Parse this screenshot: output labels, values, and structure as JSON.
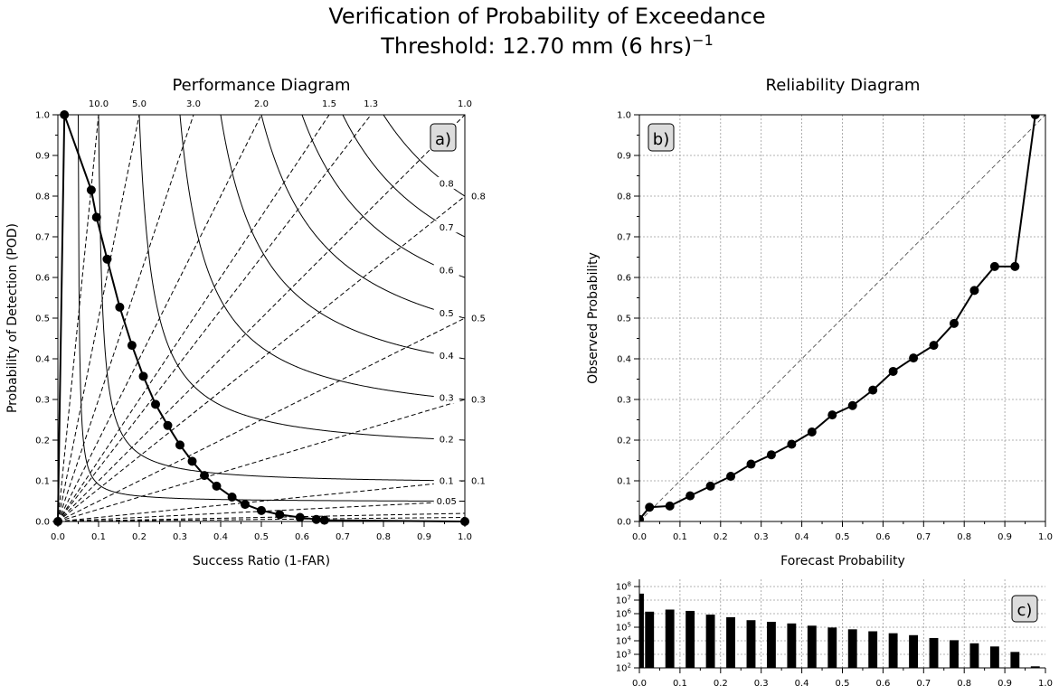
{
  "figure": {
    "title_line1": "Verification of Probability of Exceedance",
    "title_line2_prefix": "Threshold: 12.70 mm (6 hrs)",
    "title_line2_exp": "−1"
  },
  "chart_data": [
    {
      "type": "line",
      "title": "Performance Diagram",
      "xlabel": "Success Ratio (1-FAR)",
      "ylabel": "Probability of Detection (POD)",
      "xlim": [
        0,
        1
      ],
      "ylim": [
        0,
        1
      ],
      "xticks": [
        "0.0",
        "0.1",
        "0.2",
        "0.3",
        "0.4",
        "0.5",
        "0.6",
        "0.7",
        "0.8",
        "0.9",
        "1.0"
      ],
      "yticks": [
        "0.0",
        "0.1",
        "0.2",
        "0.3",
        "0.4",
        "0.5",
        "0.6",
        "0.7",
        "0.8",
        "0.9",
        "1.0"
      ],
      "panel_label": "a)",
      "grid": false,
      "bias_lines": [
        {
          "bias": 10.0,
          "label": "10.0"
        },
        {
          "bias": 5.0,
          "label": "5.0"
        },
        {
          "bias": 3.0,
          "label": "3.0"
        },
        {
          "bias": 2.0,
          "label": "2.0"
        },
        {
          "bias": 1.5,
          "label": "1.5"
        },
        {
          "bias": 1.3,
          "label": "1.3"
        },
        {
          "bias": 1.0,
          "label": "1.0"
        },
        {
          "bias": 0.8,
          "label": "0.8"
        },
        {
          "bias": 0.5,
          "label": "0.5"
        },
        {
          "bias": 0.3,
          "label": "0.3"
        },
        {
          "bias": 0.1,
          "label": "0.1"
        },
        {
          "bias": 0.05,
          "label": ""
        },
        {
          "bias": 0.02,
          "label": ""
        },
        {
          "bias": 0.01,
          "label": ""
        }
      ],
      "csi_contours": [
        {
          "csi": 0.8,
          "label": "0.8"
        },
        {
          "csi": 0.7,
          "label": "0.7"
        },
        {
          "csi": 0.6,
          "label": "0.6"
        },
        {
          "csi": 0.5,
          "label": "0.5"
        },
        {
          "csi": 0.4,
          "label": "0.4"
        },
        {
          "csi": 0.3,
          "label": "0.3"
        },
        {
          "csi": 0.2,
          "label": "0.2"
        },
        {
          "csi": 0.1,
          "label": "0.1"
        },
        {
          "csi": 0.05,
          "label": "0.05"
        }
      ],
      "series": [
        {
          "x": [
            0.0,
            0.016,
            0.082,
            0.095,
            0.121,
            0.152,
            0.182,
            0.21,
            0.24,
            0.27,
            0.3,
            0.33,
            0.36,
            0.39,
            0.428,
            0.46,
            0.5,
            0.545,
            0.595,
            0.635,
            0.655,
            1.0
          ],
          "y": [
            0.0,
            1.0,
            0.815,
            0.748,
            0.645,
            0.527,
            0.433,
            0.357,
            0.288,
            0.236,
            0.188,
            0.148,
            0.113,
            0.087,
            0.06,
            0.042,
            0.027,
            0.017,
            0.01,
            0.005,
            0.003,
            0.0
          ]
        }
      ]
    },
    {
      "type": "line",
      "title": "Reliability Diagram",
      "xlabel": "Forecast Probability",
      "ylabel": "Observed Probability",
      "xlim": [
        0,
        1
      ],
      "ylim": [
        0,
        1
      ],
      "xticks": [
        "0.0",
        "0.1",
        "0.2",
        "0.3",
        "0.4",
        "0.5",
        "0.6",
        "0.7",
        "0.8",
        "0.9",
        "1.0"
      ],
      "yticks": [
        "0.0",
        "0.1",
        "0.2",
        "0.3",
        "0.4",
        "0.5",
        "0.6",
        "0.7",
        "0.8",
        "0.9",
        "1.0"
      ],
      "panel_label": "b)",
      "grid": true,
      "series": [
        {
          "x": [
            0.0,
            0.025,
            0.075,
            0.125,
            0.175,
            0.225,
            0.275,
            0.325,
            0.375,
            0.425,
            0.475,
            0.525,
            0.575,
            0.625,
            0.675,
            0.725,
            0.775,
            0.825,
            0.875,
            0.925,
            0.975
          ],
          "y": [
            0.005,
            0.035,
            0.038,
            0.063,
            0.087,
            0.111,
            0.141,
            0.164,
            0.19,
            0.22,
            0.262,
            0.285,
            0.323,
            0.369,
            0.402,
            0.433,
            0.487,
            0.568,
            0.627,
            0.627,
            1.0
          ]
        }
      ]
    },
    {
      "type": "bar",
      "panel_label": "c)",
      "xlim": [
        0,
        1
      ],
      "ylim": [
        100,
        100000000
      ],
      "yscale": "log",
      "xticks": [
        "0.0",
        "0.1",
        "0.2",
        "0.3",
        "0.4",
        "0.5",
        "0.6",
        "0.7",
        "0.8",
        "0.9",
        "1.0"
      ],
      "yticks": [
        {
          "base": "10",
          "exp": "2"
        },
        {
          "base": "10",
          "exp": "3"
        },
        {
          "base": "10",
          "exp": "4"
        },
        {
          "base": "10",
          "exp": "5"
        },
        {
          "base": "10",
          "exp": "6"
        },
        {
          "base": "10",
          "exp": "7"
        },
        {
          "base": "10",
          "exp": "8"
        }
      ],
      "grid": true,
      "x": [
        0.0,
        0.025,
        0.075,
        0.125,
        0.175,
        0.225,
        0.275,
        0.325,
        0.375,
        0.425,
        0.475,
        0.525,
        0.575,
        0.625,
        0.675,
        0.725,
        0.775,
        0.825,
        0.875,
        0.925,
        0.975
      ],
      "values": [
        30000000,
        1400000,
        2000000,
        1600000,
        850000,
        550000,
        330000,
        250000,
        190000,
        130000,
        95000,
        70000,
        50000,
        36000,
        26000,
        16000,
        11000,
        6500,
        3800,
        1500,
        130
      ]
    }
  ]
}
